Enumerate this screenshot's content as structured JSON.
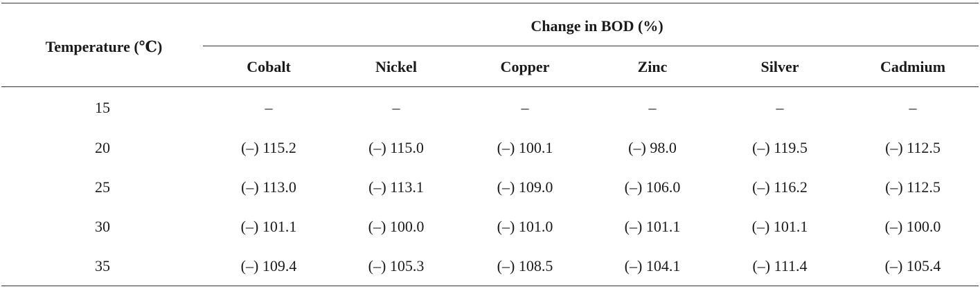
{
  "table": {
    "row_header": "Temperature (℃)",
    "group_header": "Change in BOD (%)",
    "columns": [
      "Cobalt",
      "Nickel",
      "Copper",
      "Zinc",
      "Silver",
      "Cadmium"
    ],
    "rows": [
      {
        "temperature": "15",
        "values": [
          "–",
          "–",
          "–",
          "–",
          "–",
          "–"
        ]
      },
      {
        "temperature": "20",
        "values": [
          "(–) 115.2",
          "(–) 115.0",
          "(–) 100.1",
          "(–) 98.0",
          "(–) 119.5",
          "(–) 112.5"
        ]
      },
      {
        "temperature": "25",
        "values": [
          "(–) 113.0",
          "(–) 113.1",
          "(–) 109.0",
          "(–) 106.0",
          "(–) 116.2",
          "(–) 112.5"
        ]
      },
      {
        "temperature": "30",
        "values": [
          "(–) 101.1",
          "(–) 100.0",
          "(–) 101.0",
          "(–) 101.1",
          "(–) 101.1",
          "(–) 100.0"
        ]
      },
      {
        "temperature": "35",
        "values": [
          "(–) 109.4",
          "(–) 105.3",
          "(–) 108.5",
          "(–) 104.1",
          "(–) 111.4",
          "(–) 105.4"
        ]
      }
    ]
  }
}
